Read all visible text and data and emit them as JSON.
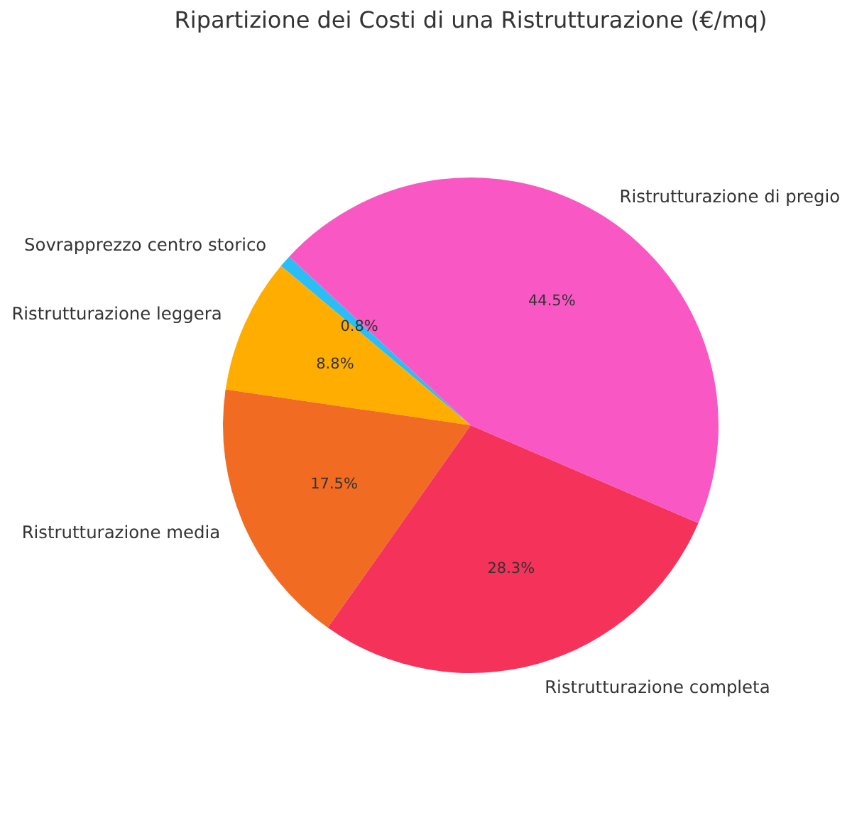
{
  "chart_data": {
    "type": "pie",
    "title": "Ripartizione dei Costi di una Ristrutturazione (€/mq)",
    "categories": [
      "Sovrapprezzo centro storico",
      "Ristrutturazione leggera",
      "Ristrutturazione media",
      "Ristrutturazione completa",
      "Ristrutturazione di pregio"
    ],
    "values": [
      0.8,
      8.8,
      17.5,
      28.3,
      44.5
    ],
    "colors": [
      "#2cbdf5",
      "#ffae00",
      "#f26b22",
      "#f5325a",
      "#f958c4"
    ],
    "value_labels": [
      "0.8%",
      "8.8%",
      "17.5%",
      "28.3%",
      "44.5%"
    ]
  }
}
